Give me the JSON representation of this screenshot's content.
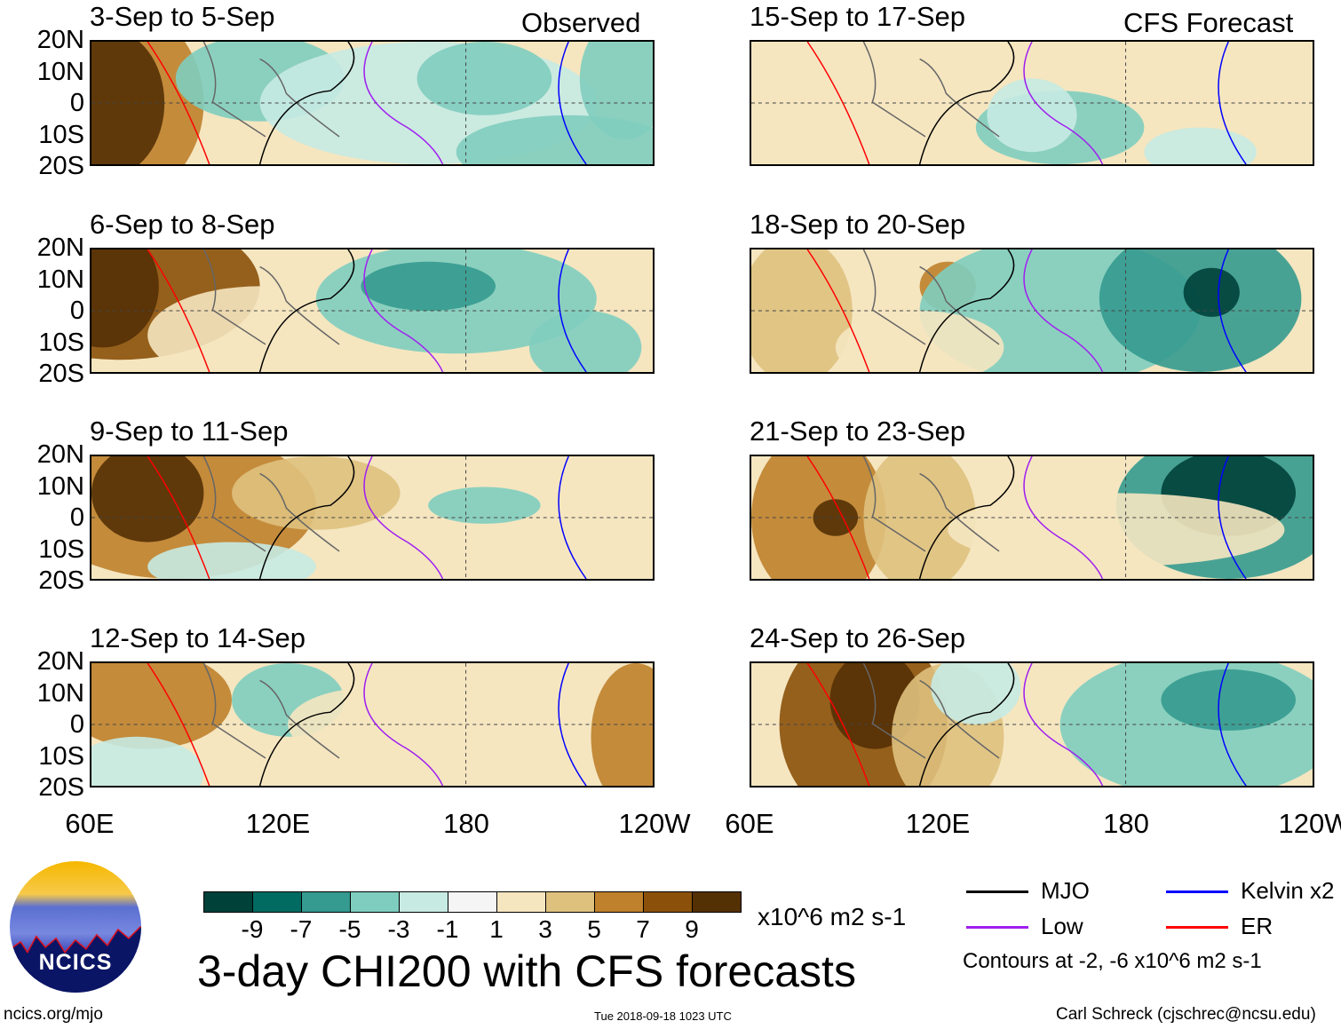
{
  "headers": {
    "left": "Observed",
    "right": "CFS Forecast"
  },
  "panels": [
    {
      "title": "3-Sep to 5-Sep",
      "column": "left"
    },
    {
      "title": "6-Sep to 8-Sep",
      "column": "left"
    },
    {
      "title": "9-Sep to 11-Sep",
      "column": "left"
    },
    {
      "title": "12-Sep to 14-Sep",
      "column": "left"
    },
    {
      "title": "15-Sep to 17-Sep",
      "column": "right"
    },
    {
      "title": "18-Sep to 20-Sep",
      "column": "right"
    },
    {
      "title": "21-Sep to 23-Sep",
      "column": "right"
    },
    {
      "title": "24-Sep to 26-Sep",
      "column": "right"
    }
  ],
  "lat_labels": [
    "20N",
    "10N",
    "0",
    "10S",
    "20S"
  ],
  "lon_labels": [
    "60E",
    "120E",
    "180",
    "120W"
  ],
  "colorbar": {
    "colors": [
      "#00413a",
      "#016b62",
      "#359a8f",
      "#7fcdbf",
      "#c7eae3",
      "#f5f5f5",
      "#f5e6c0",
      "#dfc17e",
      "#bf812c",
      "#8b510a",
      "#543005"
    ],
    "labels": [
      "-9",
      "-7",
      "-5",
      "-3",
      "-1",
      "1",
      "3",
      "5",
      "7",
      "9"
    ],
    "units": "x10^6 m2 s-1"
  },
  "title": "3-day CHI200 with CFS forecasts",
  "legend": [
    {
      "label": "MJO",
      "color": "#000000"
    },
    {
      "label": "Kelvin x2",
      "color": "#0000ff"
    },
    {
      "label": "Low",
      "color": "#a020f0"
    },
    {
      "label": "ER",
      "color": "#ff0000"
    }
  ],
  "contour_note": "Contours at -2, -6 x10^6 m2 s-1",
  "logo_text": "NCICS",
  "footer": {
    "left": "ncics.org/mjo",
    "center": "Tue 2018-09-18 1023 UTC",
    "right": "Carl Schreck (cjschrec@ncsu.edu)"
  }
}
